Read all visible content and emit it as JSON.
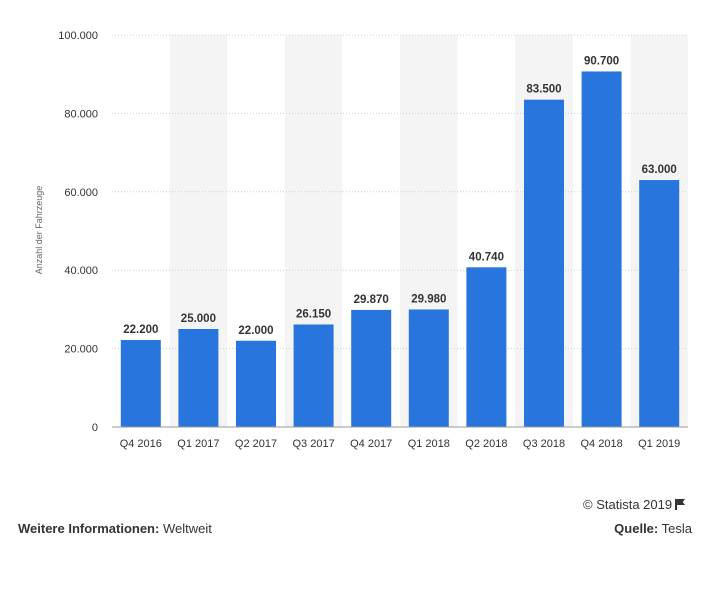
{
  "chart_data": {
    "type": "bar",
    "categories": [
      "Q4 2016",
      "Q1 2017",
      "Q2 2017",
      "Q3 2017",
      "Q4 2017",
      "Q1 2018",
      "Q2 2018",
      "Q3 2018",
      "Q4 2018",
      "Q1 2019"
    ],
    "values": [
      22200,
      25000,
      22000,
      26150,
      29870,
      29980,
      40740,
      83500,
      90700,
      63000
    ],
    "value_labels": [
      "22.200",
      "25.000",
      "22.000",
      "26.150",
      "29.870",
      "29.980",
      "40.740",
      "83.500",
      "90.700",
      "63.000"
    ],
    "ylabel": "Anzahl der Fahrzeuge",
    "ylim": [
      0,
      100000
    ],
    "yticks": [
      0,
      20000,
      40000,
      60000,
      80000,
      100000
    ],
    "ytick_labels": [
      "0",
      "20.000",
      "40.000",
      "60.000",
      "80.000",
      "100.000"
    ],
    "grid": true,
    "bar_color": "#2876dd",
    "band_color": "#f4f4f4"
  },
  "footer": {
    "copyright": "© Statista 2019",
    "info_label": "Weitere Informationen:",
    "info_value": "Weltweit",
    "source_label": "Quelle:",
    "source_value": "Tesla"
  }
}
